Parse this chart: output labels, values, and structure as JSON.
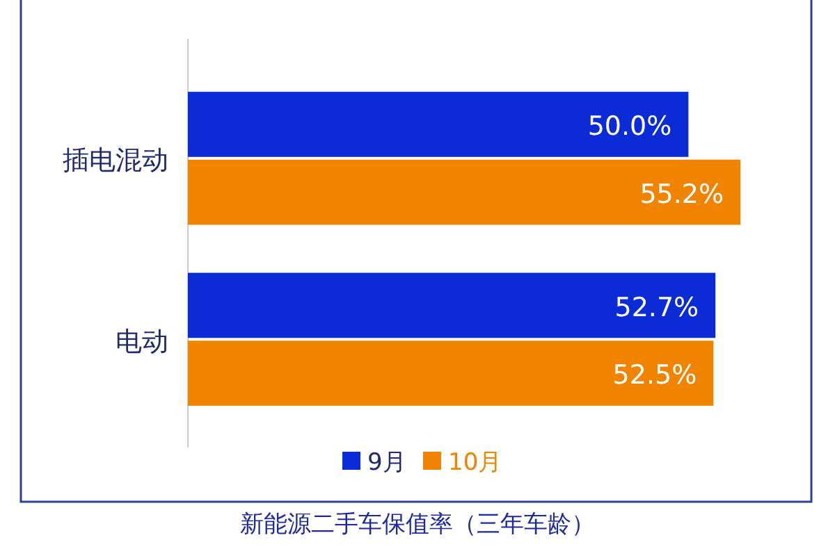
{
  "chart_data": {
    "type": "bar",
    "orientation": "horizontal",
    "title": "新能源二手车保值率（三年车龄）",
    "categories": [
      "插电混动",
      "电动"
    ],
    "series": [
      {
        "name": "9月",
        "color": "#0a2bd6",
        "values": [
          50.0,
          52.7
        ],
        "value_labels": [
          "50.0%",
          "52.7%"
        ]
      },
      {
        "name": "10月",
        "color": "#f08400",
        "values": [
          55.2,
          52.5
        ],
        "value_labels": [
          "55.2%",
          "52.5%"
        ]
      }
    ],
    "xlim": [
      0,
      62
    ],
    "tick_labels": "y",
    "legend": "bottom"
  }
}
